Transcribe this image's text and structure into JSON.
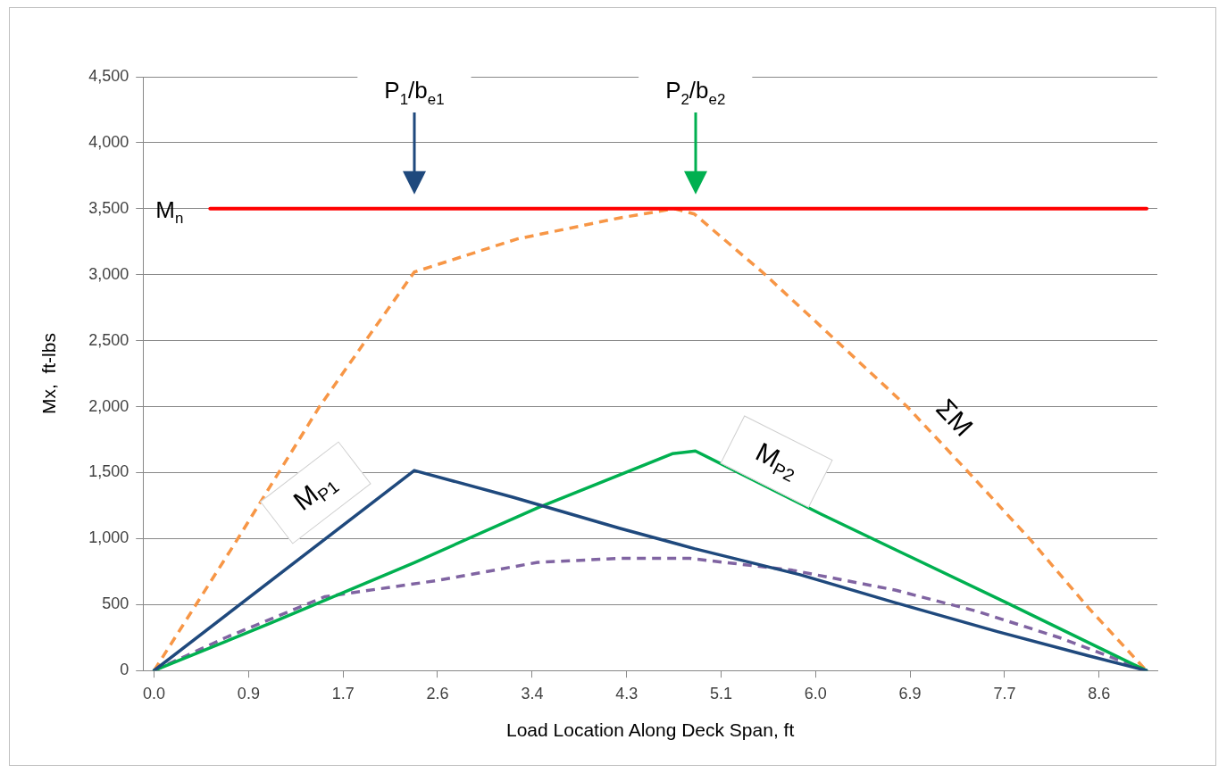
{
  "chart_data": {
    "type": "line",
    "xlabel": "Load Location Along Deck Span, ft",
    "ylabel": "Mx,  ft-lbs",
    "xlim": [
      -0.1,
      9.1
    ],
    "xticks": [
      {
        "value": 0,
        "label": "0.0"
      },
      {
        "value": 0.857,
        "label": "0.9"
      },
      {
        "value": 1.714,
        "label": "1.7"
      },
      {
        "value": 2.571,
        "label": "2.6"
      },
      {
        "value": 3.429,
        "label": "3.4"
      },
      {
        "value": 4.286,
        "label": "4.3"
      },
      {
        "value": 5.143,
        "label": "5.1"
      },
      {
        "value": 6.0,
        "label": "6.0"
      },
      {
        "value": 6.857,
        "label": "6.9"
      },
      {
        "value": 7.714,
        "label": "7.7"
      },
      {
        "value": 8.571,
        "label": "8.6"
      }
    ],
    "ylim": [
      0,
      4500
    ],
    "yticks": [
      0,
      500,
      {
        "value": 1000,
        "label": "1,000"
      },
      {
        "value": 1500,
        "label": "1,500"
      },
      {
        "value": 2000,
        "label": "2,000"
      },
      {
        "value": 2500,
        "label": "2,500"
      },
      {
        "value": 3000,
        "label": "3,000"
      },
      {
        "value": 3500,
        "label": "3,500"
      },
      {
        "value": 4000,
        "label": "4,000"
      },
      {
        "value": 4500,
        "label": "4,500"
      }
    ],
    "grid": "y",
    "legend": false,
    "marker": "none",
    "series": [
      {
        "name": "M$_{P1}$",
        "color": "#1f497d",
        "line_style": "solid",
        "x": [
          0,
          2.36,
          3.26,
          4.22,
          4.9,
          5.86,
          6.72,
          7.65,
          8.47,
          9.0
        ],
        "values": [
          0,
          1516,
          1312,
          1079,
          924,
          726,
          515,
          295,
          113,
          0
        ]
      },
      {
        "name": "M$_{P2}$",
        "color": "#00b050",
        "line_style": "solid",
        "x": [
          0,
          1.06,
          2.36,
          3.48,
          4.7,
          4.91,
          6.05,
          7.73,
          8.65,
          9.0
        ],
        "values": [
          0,
          360,
          818,
          1234,
          1643,
          1664,
          1185,
          515,
          141,
          0
        ]
      },
      {
        "name": "ΣM",
        "color": "#f79646",
        "line_style": "dashed",
        "x": [
          0,
          0.73,
          1.5,
          1.91,
          2.36,
          3.29,
          4.22,
          4.72,
          4.9,
          5.53,
          6.2,
          6.83,
          7.39,
          7.95,
          8.47,
          9.0
        ],
        "values": [
          0,
          960,
          2000,
          2490,
          3020,
          3270,
          3430,
          3500,
          3460,
          3010,
          2490,
          2000,
          1500,
          990,
          480,
          0
        ]
      },
      {
        "color": "#8064a2",
        "line_style": "dashed",
        "x": [
          0,
          0.65,
          1.55,
          2.55,
          3.48,
          4.22,
          4.86,
          5.79,
          6.72,
          7.46,
          8.21,
          9.0
        ],
        "values": [
          0,
          250,
          560,
          680,
          820,
          850,
          850,
          760,
          610,
          450,
          250,
          0
        ]
      }
    ],
    "ref_lines": [
      {
        "axis": "y",
        "value": 3500,
        "label": "M$_{n}$",
        "color": "#ff0000"
      }
    ],
    "annotations": [
      "P$_{1}$/b$_{e1}$",
      "P$_{2}$/b$_{e2}$"
    ]
  }
}
